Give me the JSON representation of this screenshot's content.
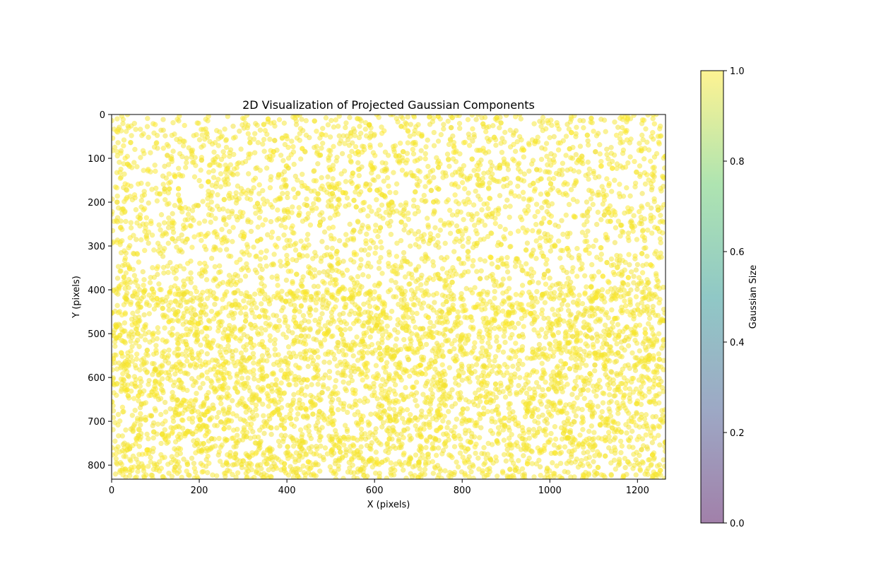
{
  "chart_data": [
    {
      "type": "scatter",
      "title": "2D Visualization of Projected Gaussian Components",
      "xlabel": "X (pixels)",
      "ylabel": "Y (pixels)",
      "xlim": [
        0,
        1264
      ],
      "ylim": [
        832,
        0
      ],
      "y_inverted": true,
      "grid": false,
      "xticks": [
        0,
        200,
        400,
        600,
        800,
        1000,
        1200
      ],
      "yticks": [
        0,
        100,
        200,
        300,
        400,
        500,
        600,
        700,
        800
      ],
      "marker_alpha": 0.5,
      "point_color": "#fde725",
      "density_note": "points sparser for y < 400, denser for y > 400",
      "colorbar": {
        "label": "Gaussian Size",
        "range": [
          0.0,
          1.0
        ],
        "ticks": [
          "0.0",
          "0.2",
          "0.4",
          "0.6",
          "0.8",
          "1.0"
        ],
        "colormap": [
          "#440154",
          "#3b528b",
          "#21918c",
          "#5ec962",
          "#fde725"
        ],
        "alpha": 0.5
      }
    }
  ]
}
